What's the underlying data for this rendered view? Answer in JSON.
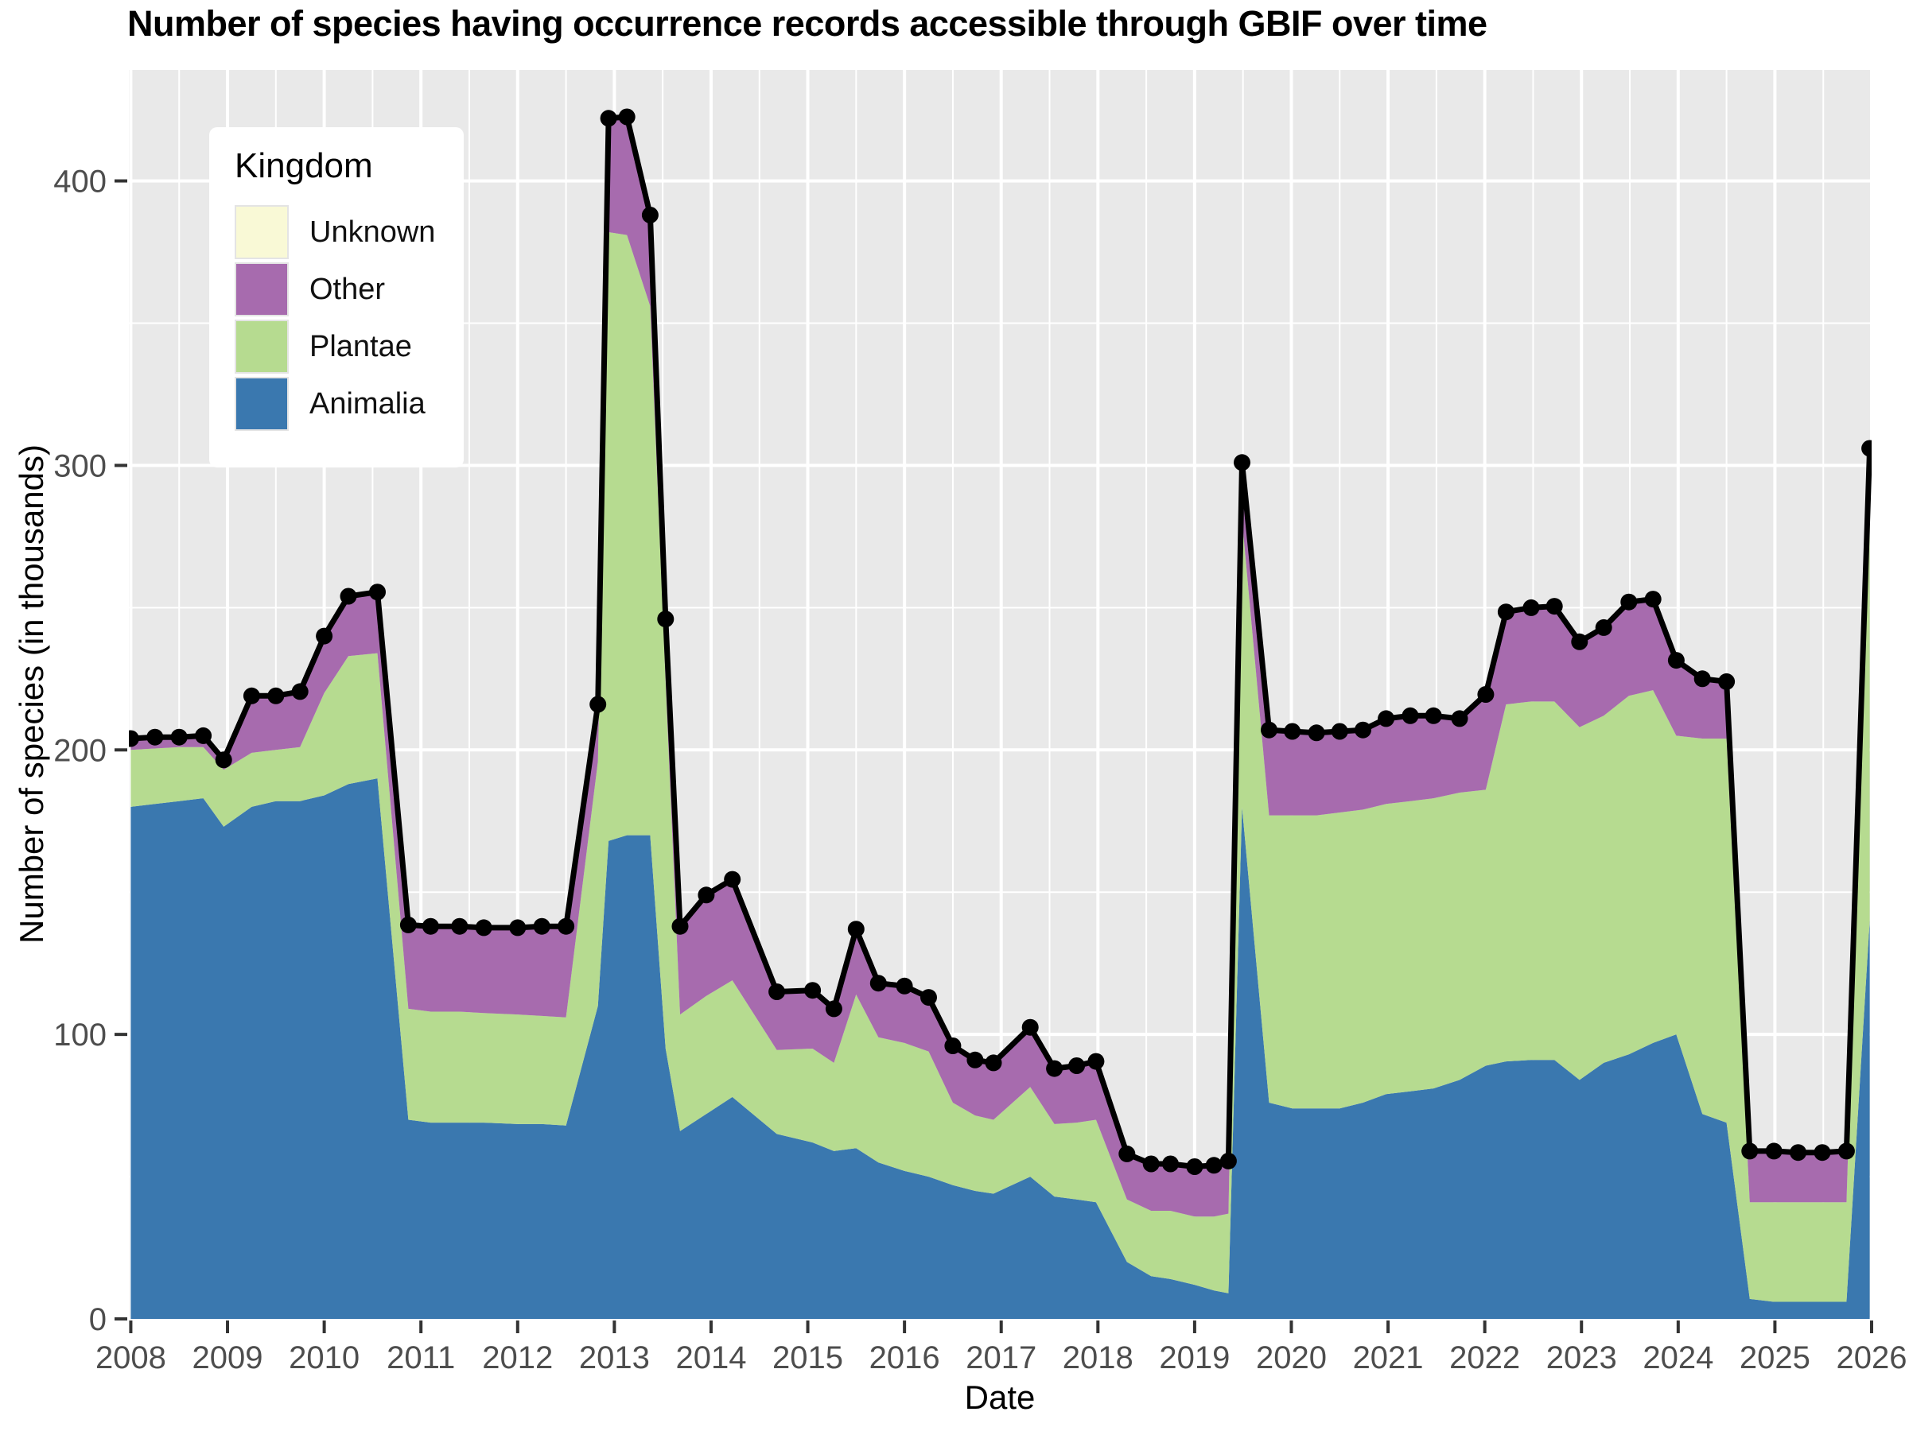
{
  "title": "Number of species having occurrence records accessible through GBIF over time",
  "x_axis": {
    "label": "Date",
    "ticks": [
      2008,
      2009,
      2010,
      2011,
      2012,
      2013,
      2014,
      2015,
      2016,
      2017,
      2018,
      2019,
      2020,
      2021,
      2022,
      2023,
      2024,
      2025,
      2026
    ]
  },
  "y_axis": {
    "label": "Number of species (in thousands)",
    "ticks": [
      0,
      100,
      200,
      300,
      400
    ],
    "minor_ticks": [
      50,
      150,
      250,
      350
    ]
  },
  "legend": {
    "title": "Kingdom",
    "items": [
      {
        "label": "Unknown",
        "color": "#f9f9d6"
      },
      {
        "label": "Other",
        "color": "#a76bae"
      },
      {
        "label": "Plantae",
        "color": "#b6db90"
      },
      {
        "label": "Animalia",
        "color": "#3a78af"
      }
    ]
  },
  "style_colors": {
    "panel_background": "#e9e9e9",
    "grid": "#ffffff",
    "total_line": "#000000",
    "tick_label": "#4d4d4d",
    "tick_mark": "#333333"
  },
  "chart_data": {
    "type": "area",
    "stacked": true,
    "stack_order": [
      "Animalia",
      "Plantae",
      "Other",
      "Unknown"
    ],
    "grid": "on",
    "legend_position": "top-left-inside",
    "x_range": [
      2007.98,
      2026.0
    ],
    "y_range": [
      0,
      439
    ],
    "x": [
      2008.0,
      2008.25,
      2008.5,
      2008.75,
      2008.96,
      2009.25,
      2009.5,
      2009.75,
      2010.0,
      2010.25,
      2010.55,
      2010.87,
      2011.1,
      2011.4,
      2011.65,
      2012.0,
      2012.25,
      2012.5,
      2012.83,
      2012.94,
      2013.13,
      2013.37,
      2013.53,
      2013.68,
      2013.95,
      2014.22,
      2014.68,
      2015.05,
      2015.27,
      2015.5,
      2015.73,
      2016.0,
      2016.25,
      2016.5,
      2016.73,
      2016.92,
      2017.3,
      2017.55,
      2017.78,
      2017.98,
      2018.3,
      2018.55,
      2018.75,
      2019.0,
      2019.2,
      2019.35,
      2019.49,
      2019.77,
      2020.01,
      2020.26,
      2020.5,
      2020.74,
      2020.98,
      2021.23,
      2021.47,
      2021.74,
      2022.01,
      2022.22,
      2022.48,
      2022.72,
      2022.98,
      2023.23,
      2023.49,
      2023.74,
      2023.98,
      2024.25,
      2024.5,
      2024.74,
      2024.99,
      2025.24,
      2025.49,
      2025.74,
      2025.98
    ],
    "series": [
      {
        "name": "Animalia",
        "color": "#3a78af",
        "values": [
          180,
          181,
          182,
          183,
          173,
          180,
          182,
          182,
          184,
          188,
          190,
          70,
          69,
          69,
          69,
          68.5,
          68.5,
          68,
          110,
          168,
          170,
          170,
          95,
          66,
          72,
          78,
          65,
          62,
          59,
          60,
          55,
          52,
          50,
          47,
          45,
          44,
          50,
          43,
          42,
          41,
          20,
          15,
          14,
          12,
          10,
          9,
          180,
          76,
          74,
          74,
          74,
          76,
          79,
          80,
          81,
          84,
          89,
          90.5,
          91,
          91,
          84,
          90,
          93,
          97,
          100,
          72,
          69,
          7,
          6,
          6,
          6,
          6,
          140
        ]
      },
      {
        "name": "Plantae",
        "color": "#b6db90",
        "values": [
          20,
          19.5,
          19,
          18,
          20,
          19,
          18,
          19,
          36,
          45,
          44,
          39,
          39,
          39,
          38.5,
          38.5,
          38,
          38,
          86,
          214,
          211,
          186,
          129,
          41,
          41.5,
          41,
          29.5,
          33,
          31,
          54,
          44,
          45,
          44,
          29,
          26.5,
          26,
          31.5,
          25.5,
          27,
          29,
          22,
          23,
          24,
          24,
          26,
          28,
          101,
          101,
          103,
          103,
          104,
          103,
          102,
          102,
          102,
          101,
          97,
          125.5,
          126,
          126,
          124,
          122,
          126,
          124,
          105,
          132,
          135,
          34,
          35,
          35,
          35,
          35,
          158
        ]
      },
      {
        "name": "Other",
        "color": "#a76bae",
        "values": [
          3.2,
          3.2,
          2.7,
          3.2,
          2.7,
          19.2,
          18.2,
          18.7,
          19.2,
          20.2,
          20.7,
          28.7,
          29.2,
          29.2,
          29.2,
          29.7,
          30.7,
          31.2,
          19.2,
          39.2,
          40.7,
          31.2,
          21.2,
          30.2,
          34.7,
          34.7,
          19.7,
          19.7,
          18.2,
          22.2,
          18.2,
          19.2,
          18.2,
          19.2,
          18.7,
          19.2,
          20.2,
          18.7,
          19.2,
          19.7,
          15.2,
          15.7,
          15.7,
          16.7,
          17.2,
          17.7,
          19.2,
          29.2,
          28.7,
          28.2,
          27.7,
          27.2,
          29.2,
          29.2,
          28.2,
          25.2,
          32.7,
          31.7,
          32.2,
          32.7,
          29.2,
          30.2,
          32.2,
          31.2,
          25.7,
          20.2,
          19.2,
          17.2,
          17.2,
          16.7,
          16.7,
          17.2,
          7.2
        ]
      },
      {
        "name": "Unknown",
        "color": "#f9f9d6",
        "values": [
          0.8,
          0.8,
          0.8,
          0.8,
          0.8,
          0.8,
          0.8,
          0.8,
          0.8,
          0.8,
          0.8,
          0.8,
          0.8,
          0.8,
          0.8,
          0.8,
          0.8,
          0.8,
          0.8,
          0.8,
          0.8,
          0.8,
          0.8,
          0.8,
          0.8,
          0.8,
          0.8,
          0.8,
          0.8,
          0.8,
          0.8,
          0.8,
          0.8,
          0.8,
          0.8,
          0.8,
          0.8,
          0.8,
          0.8,
          0.8,
          0.8,
          0.8,
          0.8,
          0.8,
          0.8,
          0.8,
          0.8,
          0.8,
          0.8,
          0.8,
          0.8,
          0.8,
          0.8,
          0.8,
          0.8,
          0.8,
          0.8,
          0.8,
          0.8,
          0.8,
          0.8,
          0.8,
          0.8,
          0.8,
          0.8,
          0.8,
          0.8,
          0.8,
          0.8,
          0.8,
          0.8,
          0.8,
          0.8
        ]
      }
    ],
    "total_line": {
      "show": true,
      "show_points": true
    }
  }
}
